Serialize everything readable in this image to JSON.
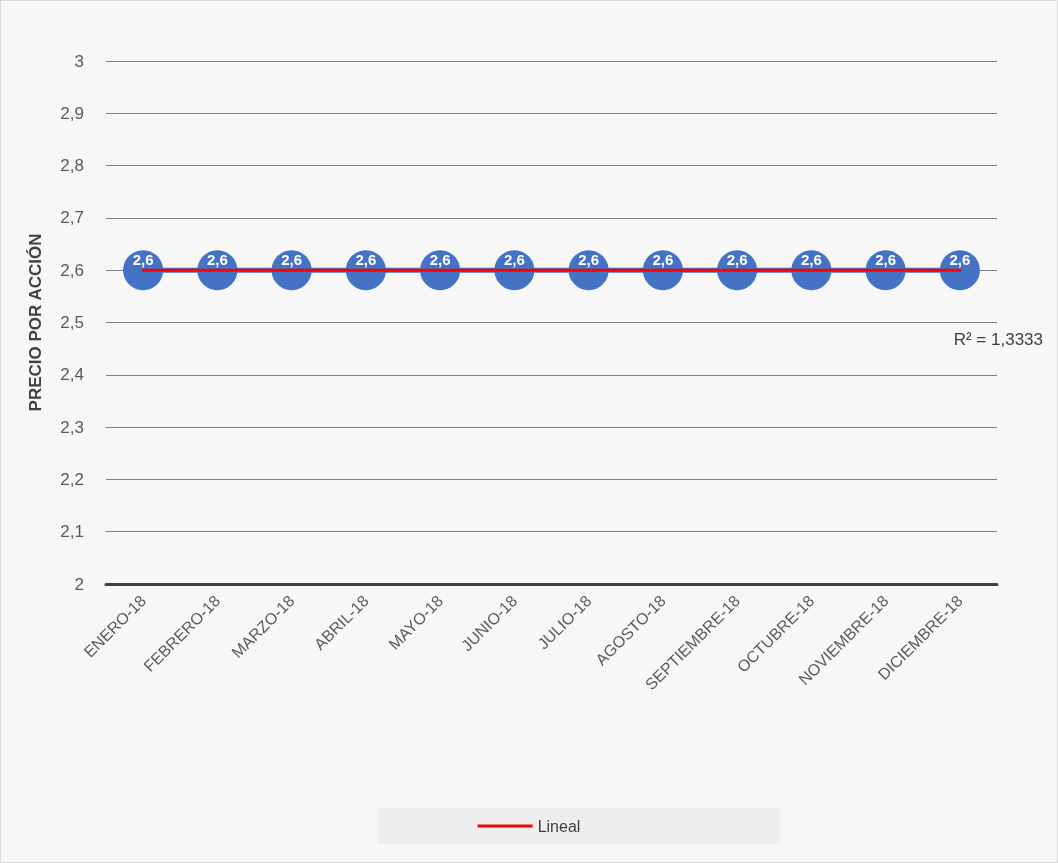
{
  "chart_data": {
    "type": "line",
    "ylabel": "PRECIO POR ACCIÓN",
    "categories": [
      "ENERO-18",
      "FEBRERO-18",
      "MARZO-18",
      "ABRIL-18",
      "MAYO-18",
      "JUNIO-18",
      "JULIO-18",
      "AGOSTO-18",
      "SEPTIEMBRE-18",
      "OCTUBRE-18",
      "NOVIEMBRE-18",
      "DICIEMBRE-18"
    ],
    "series": [
      {
        "color": "#4472c4",
        "marker": "circle",
        "data_labels": true,
        "values": [
          2.6,
          2.6,
          2.6,
          2.6,
          2.6,
          2.6,
          2.6,
          2.6,
          2.6,
          2.6,
          2.6,
          2.6
        ],
        "value_labels": [
          "2,6",
          "2,6",
          "2,6",
          "2,6",
          "2,6",
          "2,6",
          "2,6",
          "2,6",
          "2,6",
          "2,6",
          "2,6",
          "2,6"
        ]
      },
      {
        "type": "line",
        "name": "Lineal",
        "color": "#ff0000",
        "marker": "none",
        "values": [
          2.6,
          2.6,
          2.6,
          2.6,
          2.6,
          2.6,
          2.6,
          2.6,
          2.6,
          2.6,
          2.6,
          2.6
        ]
      }
    ],
    "ylim": [
      2,
      3
    ],
    "yticks": [
      {
        "value": 2,
        "label": "2"
      },
      {
        "value": 2.1,
        "label": "2,1"
      },
      {
        "value": 2.2,
        "label": "2,2"
      },
      {
        "value": 2.3,
        "label": "2,3"
      },
      {
        "value": 2.4,
        "label": "2,4"
      },
      {
        "value": 2.5,
        "label": "2,5"
      },
      {
        "value": 2.6,
        "label": "2,6"
      },
      {
        "value": 2.7,
        "label": "2,7"
      },
      {
        "value": 2.8,
        "label": "2,8"
      },
      {
        "value": 2.9,
        "label": "2,9"
      },
      {
        "value": 3,
        "label": "3"
      }
    ],
    "annotations": [
      "R² = 1,3333"
    ],
    "grid": "y",
    "legend": "bottom"
  }
}
